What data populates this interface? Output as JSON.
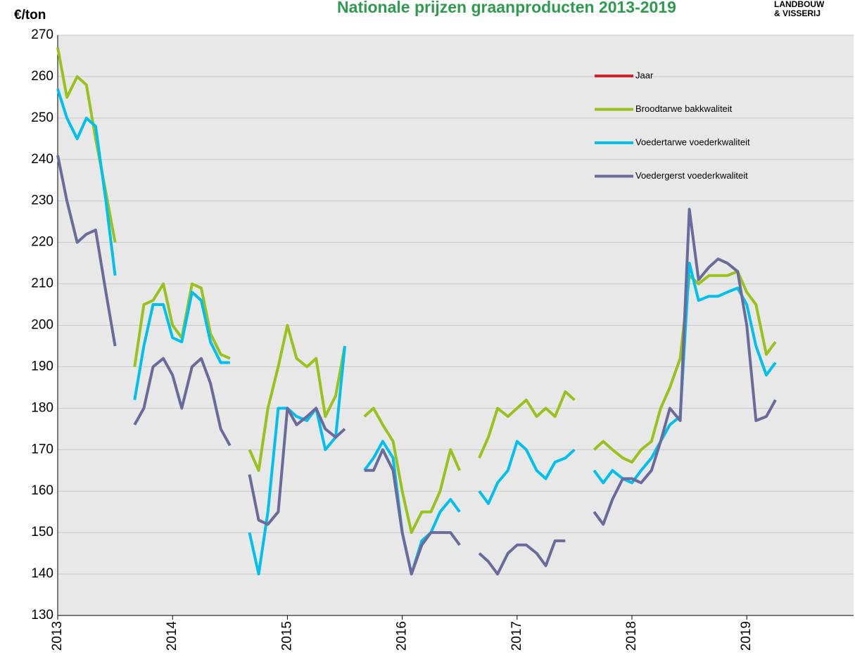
{
  "chart_data": {
    "type": "line",
    "title": "Nationale prijzen graanproducten 2013-2019",
    "logo": "LANDBOUW & VISSERIJ",
    "y_label": "€/ton",
    "xlim": [
      2013,
      2019.93
    ],
    "xticks": [
      2013,
      2014,
      2015,
      2016,
      2017,
      2018,
      2019
    ],
    "ylim": [
      130,
      270
    ],
    "yticks": [
      130,
      140,
      150,
      160,
      170,
      180,
      190,
      200,
      210,
      220,
      230,
      240,
      250,
      260,
      270
    ],
    "grid": true,
    "legend": "upper right",
    "x": [
      2013.0,
      2013.08,
      2013.17,
      2013.25,
      2013.33,
      2013.42,
      2013.5,
      2013.58,
      2013.67,
      2013.75,
      2013.83,
      2013.92,
      2014.0,
      2014.08,
      2014.17,
      2014.25,
      2014.33,
      2014.42,
      2014.5,
      2014.58,
      2014.67,
      2014.75,
      2014.83,
      2014.92,
      2015.0,
      2015.08,
      2015.17,
      2015.25,
      2015.33,
      2015.42,
      2015.5,
      2015.58,
      2015.67,
      2015.75,
      2015.83,
      2015.92,
      2016.0,
      2016.08,
      2016.17,
      2016.25,
      2016.33,
      2016.42,
      2016.5,
      2016.58,
      2016.67,
      2016.75,
      2016.83,
      2016.92,
      2017.0,
      2017.08,
      2017.17,
      2017.25,
      2017.33,
      2017.42,
      2017.5,
      2017.58,
      2017.67,
      2017.75,
      2017.83,
      2017.92,
      2018.0,
      2018.08,
      2018.17,
      2018.25,
      2018.33,
      2018.42,
      2018.5,
      2018.58,
      2018.67,
      2018.75,
      2018.83,
      2018.92,
      2019.0,
      2019.08,
      2019.17,
      2019.25
    ],
    "series": [
      {
        "name": "Jaar",
        "color": "#d0222b",
        "values": [
          null,
          null,
          null,
          null,
          null,
          null,
          null,
          null,
          null,
          null,
          null,
          null,
          null,
          null,
          null,
          null,
          null,
          null,
          null,
          null,
          null,
          null,
          null,
          null,
          null,
          null,
          null,
          null,
          null,
          null,
          null,
          null,
          null,
          null,
          null,
          null,
          null,
          null,
          null,
          null,
          null,
          null,
          null,
          null,
          null,
          null,
          null,
          null,
          null,
          null,
          null,
          null,
          null,
          null,
          null,
          null,
          null,
          null,
          null,
          null,
          null,
          null,
          null,
          null,
          null,
          null,
          null,
          null,
          null,
          null,
          null,
          null,
          null,
          null,
          null,
          null
        ]
      },
      {
        "name": "Broodtarwe bakkwaliteit",
        "color": "#99c21c",
        "values": [
          267,
          255,
          260,
          258,
          245,
          232,
          220,
          null,
          190,
          205,
          206,
          210,
          200,
          197,
          210,
          209,
          198,
          193,
          192,
          null,
          170,
          165,
          180,
          190,
          200,
          192,
          190,
          192,
          178,
          183,
          195,
          null,
          178,
          180,
          176,
          172,
          160,
          150,
          155,
          155,
          160,
          170,
          165,
          null,
          168,
          173,
          180,
          178,
          180,
          182,
          178,
          180,
          178,
          184,
          182,
          null,
          170,
          172,
          170,
          168,
          167,
          170,
          172,
          180,
          185,
          192,
          212,
          210,
          212,
          212,
          212,
          213,
          208,
          205,
          193,
          196
        ]
      },
      {
        "name": "Voedertarwe voederkwaliteit",
        "color": "#00c0f0",
        "values": [
          257,
          250,
          245,
          250,
          248,
          230,
          212,
          null,
          182,
          195,
          205,
          205,
          197,
          196,
          208,
          206,
          196,
          191,
          191,
          null,
          150,
          140,
          155,
          180,
          180,
          178,
          177,
          180,
          170,
          173,
          195,
          null,
          165,
          168,
          172,
          168,
          150,
          140,
          148,
          150,
          155,
          158,
          155,
          null,
          160,
          157,
          162,
          165,
          172,
          170,
          165,
          163,
          167,
          168,
          170,
          null,
          165,
          162,
          165,
          163,
          162,
          165,
          168,
          172,
          176,
          178,
          215,
          206,
          207,
          207,
          208,
          209,
          205,
          195,
          188,
          191
        ]
      },
      {
        "name": "Voedergerst voederkwaliteit",
        "color": "#6a6a9c",
        "values": [
          241,
          230,
          220,
          222,
          223,
          208,
          195,
          null,
          176,
          180,
          190,
          192,
          188,
          180,
          190,
          192,
          186,
          175,
          171,
          null,
          164,
          153,
          152,
          155,
          180,
          176,
          178,
          180,
          175,
          173,
          175,
          null,
          165,
          165,
          170,
          165,
          150,
          140,
          147,
          150,
          150,
          150,
          147,
          null,
          145,
          143,
          140,
          145,
          147,
          147,
          145,
          142,
          148,
          148,
          null,
          null,
          155,
          152,
          158,
          163,
          163,
          162,
          165,
          172,
          180,
          177,
          228,
          211,
          214,
          216,
          215,
          213,
          200,
          177,
          178,
          182
        ]
      }
    ]
  }
}
